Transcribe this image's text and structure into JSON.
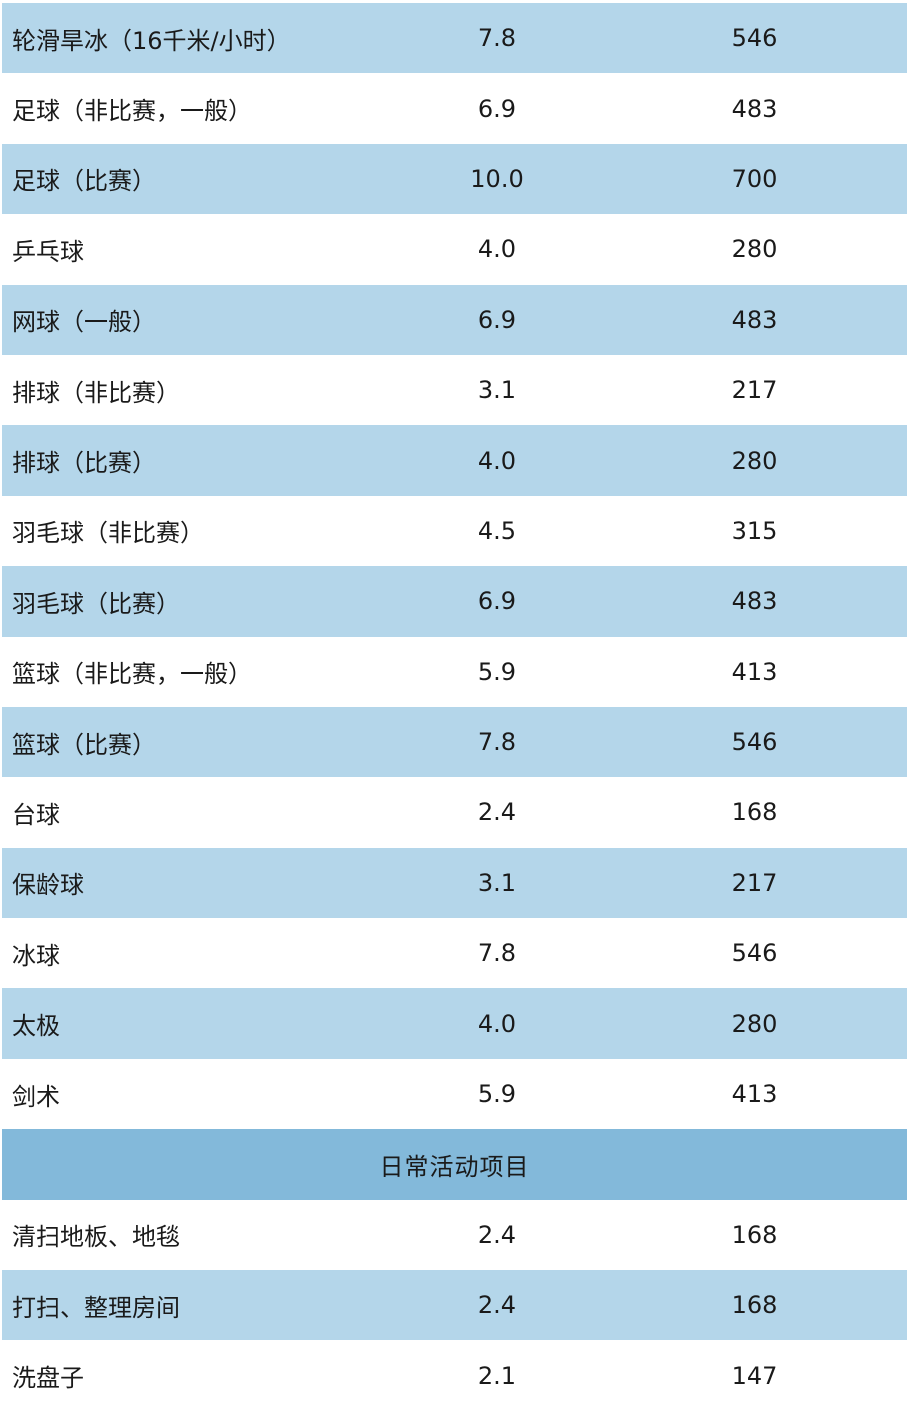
{
  "colors": {
    "row_shaded": "#b4d6ea",
    "row_plain": "#ffffff",
    "section_header": "#83b9da"
  },
  "rows_top": [
    {
      "name": "轮滑旱冰（16千米/小时）",
      "met": "7.8",
      "kcal": "546"
    },
    {
      "name": "足球（非比赛，一般）",
      "met": "6.9",
      "kcal": "483"
    },
    {
      "name": "足球（比赛）",
      "met": "10.0",
      "kcal": "700"
    },
    {
      "name": "乒乓球",
      "met": "4.0",
      "kcal": "280"
    },
    {
      "name": "网球（一般）",
      "met": "6.9",
      "kcal": "483"
    },
    {
      "name": "排球（非比赛）",
      "met": "3.1",
      "kcal": "217"
    },
    {
      "name": "排球（比赛）",
      "met": "4.0",
      "kcal": "280"
    },
    {
      "name": "羽毛球（非比赛）",
      "met": "4.5",
      "kcal": "315"
    },
    {
      "name": "羽毛球（比赛）",
      "met": "6.9",
      "kcal": "483"
    },
    {
      "name": "篮球（非比赛，一般）",
      "met": "5.9",
      "kcal": "413"
    },
    {
      "name": "篮球（比赛）",
      "met": "7.8",
      "kcal": "546"
    },
    {
      "name": "台球",
      "met": "2.4",
      "kcal": "168"
    },
    {
      "name": "保龄球",
      "met": "3.1",
      "kcal": "217"
    },
    {
      "name": "冰球",
      "met": "7.8",
      "kcal": "546"
    },
    {
      "name": "太极",
      "met": "4.0",
      "kcal": "280"
    },
    {
      "name": "剑术",
      "met": "5.9",
      "kcal": "413"
    }
  ],
  "section_title": "日常活动项目",
  "rows_bottom": [
    {
      "name": "清扫地板、地毯",
      "met": "2.4",
      "kcal": "168"
    },
    {
      "name": "打扫、整理房间",
      "met": "2.4",
      "kcal": "168"
    },
    {
      "name": "洗盘子",
      "met": "2.1",
      "kcal": "147"
    }
  ]
}
